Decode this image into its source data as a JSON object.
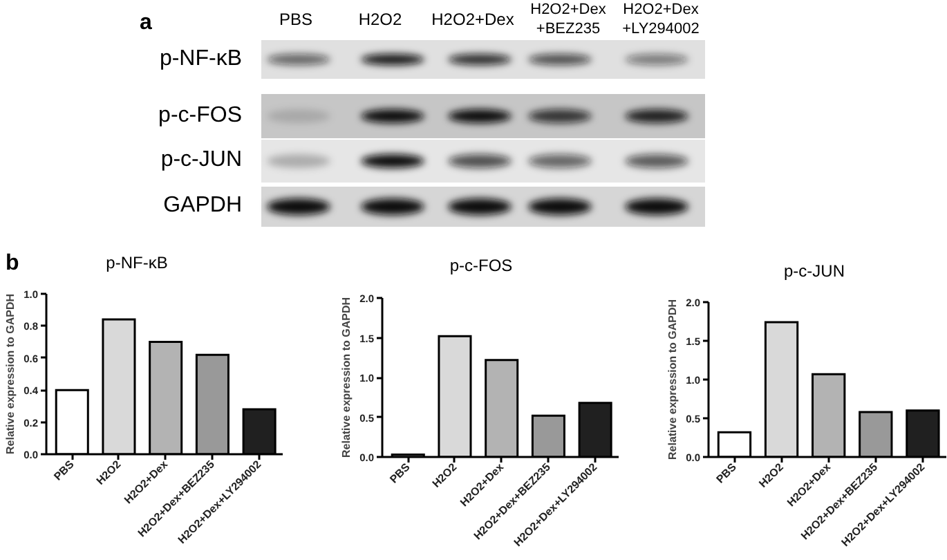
{
  "chart_data": [
    {
      "type": "other",
      "annotations": [
        "a"
      ],
      "categories": [
        "PBS",
        "H2O2",
        "H2O2+Dex",
        "H2O2+Dex\n+BEZ235",
        "H2O2+Dex\n+LY294002"
      ],
      "y_categories": [
        "p-NF-κB",
        "p-c-FOS",
        "p-c-JUN",
        "GAPDH"
      ]
    },
    {
      "type": "bar",
      "title": "p-NF-κB",
      "ylabel": "Relative expression to GAPDH",
      "annotations": [
        "b"
      ],
      "categories": [
        "PBS",
        "H2O2",
        "H2O2+Dex",
        "H2O2+Dex+BEZ235",
        "H2O2+Dex+LY294002"
      ],
      "values": [
        0.4,
        0.84,
        0.7,
        0.62,
        0.28
      ],
      "colors": [
        "#ffffff",
        "#d9d9d9",
        "#b3b3b3",
        "#999999",
        "#202020"
      ],
      "ylim": [
        0,
        1
      ],
      "yticks": [
        {
          "value": 0,
          "label": "0.0"
        },
        0.2,
        0.4,
        0.6,
        0.8,
        {
          "value": 1,
          "label": "1.0"
        }
      ]
    },
    {
      "type": "bar",
      "title": "p-c-FOS",
      "ylabel": "Relative expression to GAPDH",
      "categories": [
        "PBS",
        "H2O2",
        "H2O2+Dex",
        "H2O2+Dex+BEZ235",
        "H2O2+Dex+LY294002"
      ],
      "values": [
        0.03,
        1.52,
        1.22,
        0.52,
        0.68
      ],
      "colors": [
        "#ffffff",
        "#d9d9d9",
        "#b3b3b3",
        "#999999",
        "#202020"
      ],
      "ylim": [
        0,
        2
      ],
      "yticks": [
        {
          "value": 0,
          "label": "0.0"
        },
        0.5,
        {
          "value": 1,
          "label": "1.0"
        },
        1.5,
        {
          "value": 2,
          "label": "2.0"
        }
      ]
    },
    {
      "type": "bar",
      "title": "p-c-JUN",
      "ylabel": "Relative expression to GAPDH",
      "categories": [
        "PBS",
        "H2O2",
        "H2O2+Dex",
        "H2O2+Dex+BEZ235",
        "H2O2+Dex+LY294002"
      ],
      "values": [
        0.32,
        1.74,
        1.07,
        0.58,
        0.6
      ],
      "colors": [
        "#ffffff",
        "#d9d9d9",
        "#b3b3b3",
        "#999999",
        "#202020"
      ],
      "ylim": [
        0,
        2
      ],
      "yticks": [
        {
          "value": 0,
          "label": "0.0"
        },
        0.5,
        {
          "value": 1,
          "label": "1.0"
        },
        1.5,
        {
          "value": 2,
          "label": "2.0"
        }
      ]
    }
  ]
}
